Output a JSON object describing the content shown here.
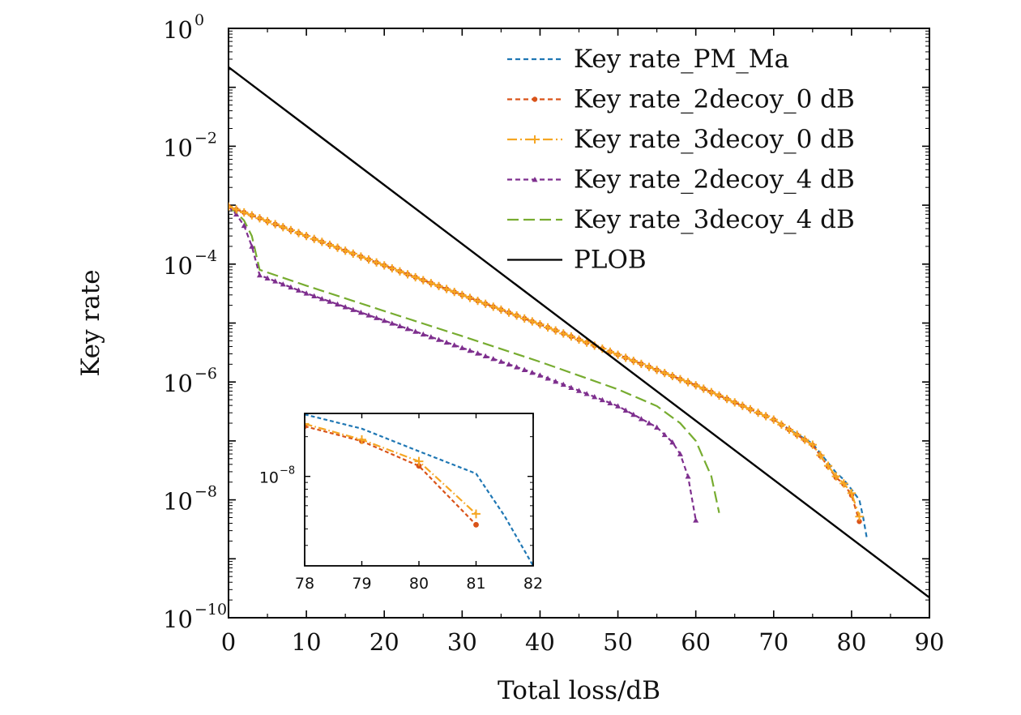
{
  "chart_data": [
    {
      "type": "line",
      "title": "",
      "xlabel": "Total loss/dB",
      "ylabel": "Key rate",
      "xlim": [
        0,
        90
      ],
      "ylim": [
        1e-10,
        1
      ],
      "yscale": "log",
      "grid": false,
      "legend_position": "top-right",
      "x_ticks": [
        "0",
        "10",
        "20",
        "30",
        "40",
        "50",
        "60",
        "70",
        "80",
        "90"
      ],
      "y_ticks": [
        {
          "base": "10",
          "exp": "0"
        },
        {
          "base": "10",
          "exp": "−2"
        },
        {
          "base": "10",
          "exp": "−4"
        },
        {
          "base": "10",
          "exp": "−6"
        },
        {
          "base": "10",
          "exp": "−8"
        },
        {
          "base": "10",
          "exp": "−10"
        }
      ],
      "series": [
        {
          "name": "Key rate_PM_Ma",
          "color": "#1f77b4",
          "style": "dashed",
          "marker": "none",
          "points": [
            [
              0,
              0.00095
            ],
            [
              10,
              0.0003
            ],
            [
              20,
              9.5e-05
            ],
            [
              30,
              3e-05
            ],
            [
              40,
              9.5e-06
            ],
            [
              50,
              2.9e-06
            ],
            [
              60,
              8.8e-07
            ],
            [
              70,
              2.3e-07
            ],
            [
              75,
              9e-08
            ],
            [
              78,
              2.9e-08
            ],
            [
              79,
              2.2e-08
            ],
            [
              80,
              1.5e-08
            ],
            [
              81,
              1e-08
            ],
            [
              81.5,
              5e-09
            ],
            [
              82,
              2.1e-09
            ]
          ]
        },
        {
          "name": "Key rate_2decoy_0 dB",
          "color": "#d95319",
          "style": "dashed",
          "marker": "dot",
          "points": [
            [
              0,
              0.00095
            ],
            [
              10,
              0.0003
            ],
            [
              20,
              9.5e-05
            ],
            [
              30,
              3e-05
            ],
            [
              40,
              9.5e-06
            ],
            [
              50,
              2.9e-06
            ],
            [
              60,
              8.8e-07
            ],
            [
              70,
              2.3e-07
            ],
            [
              75,
              8.5e-08
            ],
            [
              78,
              2.4e-08
            ],
            [
              79,
              1.85e-08
            ],
            [
              80,
              1.2e-08
            ],
            [
              81,
              4.3e-09
            ]
          ]
        },
        {
          "name": "Key rate_3decoy_0 dB",
          "color": "#f5a623",
          "style": "dashdot",
          "marker": "plus",
          "points": [
            [
              0,
              0.00095
            ],
            [
              10,
              0.0003
            ],
            [
              20,
              9.5e-05
            ],
            [
              30,
              3e-05
            ],
            [
              40,
              9.5e-06
            ],
            [
              50,
              2.9e-06
            ],
            [
              60,
              8.8e-07
            ],
            [
              70,
              2.3e-07
            ],
            [
              75,
              8.6e-08
            ],
            [
              78,
              2.5e-08
            ],
            [
              79,
              1.9e-08
            ],
            [
              80,
              1.3e-08
            ],
            [
              81,
              5.2e-09
            ]
          ]
        },
        {
          "name": "Key rate_2decoy_4 dB",
          "color": "#7e2f8e",
          "style": "dashed",
          "marker": "triangle",
          "points": [
            [
              0,
              0.00095
            ],
            [
              1,
              0.0007
            ],
            [
              2,
              0.00045
            ],
            [
              3,
              0.0002
            ],
            [
              4,
              6.5e-05
            ],
            [
              10,
              3.2e-05
            ],
            [
              20,
              1.1e-05
            ],
            [
              30,
              3.8e-06
            ],
            [
              40,
              1.3e-06
            ],
            [
              50,
              3.9e-07
            ],
            [
              55,
              1.7e-07
            ],
            [
              57,
              9.5e-08
            ],
            [
              58,
              6e-08
            ],
            [
              59,
              2.5e-08
            ],
            [
              60,
              4.5e-09
            ]
          ]
        },
        {
          "name": "Key rate_3decoy_4 dB",
          "color": "#77ac30",
          "style": "longdash",
          "marker": "none",
          "points": [
            [
              0,
              0.00095
            ],
            [
              1,
              0.00075
            ],
            [
              2,
              0.00055
            ],
            [
              3,
              0.0003
            ],
            [
              4,
              8e-05
            ],
            [
              10,
              4.3e-05
            ],
            [
              20,
              1.6e-05
            ],
            [
              30,
              6e-06
            ],
            [
              40,
              2.2e-06
            ],
            [
              50,
              7.5e-07
            ],
            [
              55,
              3.9e-07
            ],
            [
              58,
              2e-07
            ],
            [
              60,
              1e-07
            ],
            [
              62,
              2.5e-08
            ],
            [
              63,
              6e-09
            ]
          ]
        },
        {
          "name": "PLOB",
          "color": "#000000",
          "style": "solid",
          "marker": "none",
          "points": [
            [
              0,
              0.22
            ],
            [
              90,
              2.2e-10
            ]
          ]
        }
      ]
    },
    {
      "type": "line",
      "title": "",
      "xlabel": "",
      "ylabel": "",
      "xlim": [
        78,
        82
      ],
      "ylim": [
        2.1e-09,
        3e-08
      ],
      "yscale": "log",
      "grid": false,
      "x_ticks": [
        "78",
        "79",
        "80",
        "81",
        "82"
      ],
      "y_ticks": [
        {
          "base": "10",
          "exp": "−8"
        }
      ],
      "series": [
        {
          "name": "Key rate_PM_Ma",
          "color": "#1f77b4",
          "style": "dashed",
          "marker": "none",
          "points": [
            [
              78,
              2.95e-08
            ],
            [
              79,
              2.3e-08
            ],
            [
              80,
              1.55e-08
            ],
            [
              81,
              1.05e-08
            ],
            [
              81.5,
              5e-09
            ],
            [
              82,
              2.1e-09
            ]
          ]
        },
        {
          "name": "Key rate_2decoy_0 dB",
          "color": "#d95319",
          "style": "dashed",
          "marker": "dot",
          "points": [
            [
              78,
              2.4e-08
            ],
            [
              79,
              1.85e-08
            ],
            [
              80,
              1.2e-08
            ],
            [
              81,
              4.3e-09
            ]
          ]
        },
        {
          "name": "Key rate_3decoy_0 dB",
          "color": "#f5a623",
          "style": "dashdot",
          "marker": "plus",
          "points": [
            [
              78,
              2.5e-08
            ],
            [
              79,
              1.9e-08
            ],
            [
              80,
              1.3e-08
            ],
            [
              81,
              5.2e-09
            ]
          ]
        }
      ]
    }
  ]
}
